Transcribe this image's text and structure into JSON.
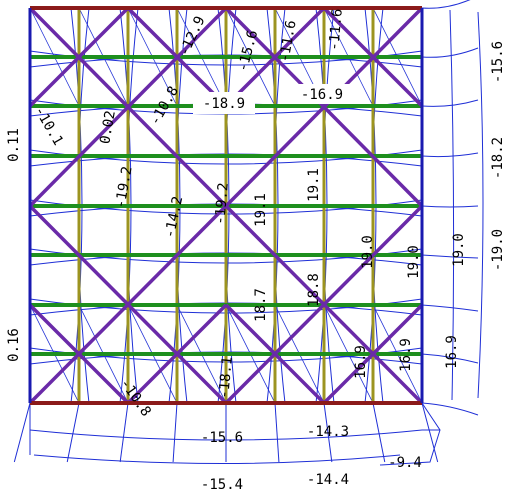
{
  "colors": {
    "background": "#ffffff",
    "mesh": "#1f2fd6",
    "frame": "#1a1ab0",
    "beam": "#1e8f1e",
    "column": "#9c9420",
    "brace": "#6a2aa8",
    "slab_edge": "#8b1a1a",
    "text": "#000000"
  },
  "labels": {
    "left_upper": "0.11",
    "left_lower": "0.16",
    "right_top": "-15.6",
    "right_mid": "-18.2",
    "right_lower": "-19.0",
    "center_left_top": "-18.9",
    "center_right_top": "-16.9",
    "bottom_center": "-15.6",
    "bottom_right": "-14.3",
    "bottom_far_right": "-9.4",
    "bottom_left_low": "-15.4",
    "bottom_right_low": "-14.4",
    "r1": "19.0",
    "r2": "19.0",
    "r3": "16.9",
    "r4": "16.9",
    "r5": "16.9",
    "c1": "19.1",
    "c2": "19.1",
    "c3": "18.7",
    "c4": "18.8",
    "c5": "19.0",
    "d1": "-19.2",
    "d2": "-19.2",
    "d3": "-14.2",
    "d4": "-10.1",
    "d5": "-10.8",
    "d6": "-15.6",
    "d7": "-11.6",
    "d8": "-11.6",
    "d9": "-12.9",
    "d10": "0.02",
    "d11": "-10.8",
    "d12": "-18.1"
  }
}
